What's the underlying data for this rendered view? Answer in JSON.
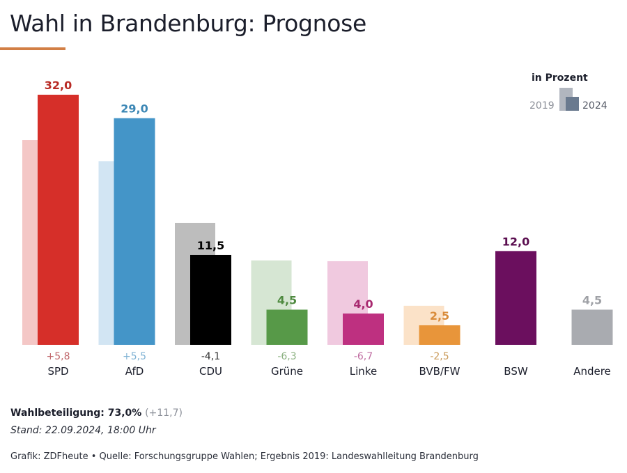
{
  "header": {
    "title": "Wahl in Brandenburg: Prognose",
    "accent_color": "#d27f45"
  },
  "legend": {
    "title": "in Prozent",
    "year_old": "2019",
    "year_new": "2024"
  },
  "chart_data": {
    "type": "bar",
    "title": "Wahl in Brandenburg: Prognose",
    "unit": "in Prozent",
    "xlabel": "",
    "ylabel": "",
    "ylim": [
      0,
      32
    ],
    "grid": false,
    "legend_position": "top-right",
    "categories": [
      "SPD",
      "AfD",
      "CDU",
      "Grüne",
      "Linke",
      "BVB/FW",
      "BSW",
      "Andere"
    ],
    "series": [
      {
        "name": "2019",
        "values": [
          26.2,
          23.5,
          15.6,
          10.8,
          10.7,
          5.0,
          null,
          null
        ]
      },
      {
        "name": "2024",
        "values": [
          32.0,
          29.0,
          11.5,
          4.5,
          4.0,
          2.5,
          12.0,
          4.5
        ]
      }
    ],
    "value_labels": [
      "32,0",
      "29,0",
      "11,5",
      "4,5",
      "4,0",
      "2,5",
      "12,0",
      "4,5"
    ],
    "change_labels": [
      "+5,8",
      "+5,5",
      "-4,1",
      "-6,3",
      "-6,7",
      "-2,5",
      "",
      ""
    ],
    "colors_2024": [
      "#d62f29",
      "#4495c8",
      "#000000",
      "#579948",
      "#be3080",
      "#e8953a",
      "#6b0f5e",
      "#a9abb0"
    ],
    "colors_2019": [
      "#f4c7c6",
      "#d2e5f3",
      "#bdbdbd",
      "#d6e6d3",
      "#f0c9df",
      "#fbe2c8",
      "",
      ""
    ],
    "value_label_colors": [
      "#b82a24",
      "#3c87b5",
      "#000000",
      "#4f8a40",
      "#a8286f",
      "#d98b3a",
      "#5a0d4f",
      "#9fa1a6"
    ],
    "change_label_colors": [
      "#c0666a",
      "#7fb2d4",
      "#333333",
      "#8ab07f",
      "#c06ea2",
      "#c99856",
      "#888888",
      "#888888"
    ]
  },
  "footer": {
    "turnout_label": "Wahlbeteiligung: 73,0%",
    "turnout_change": "(+11,7)",
    "stand": "Stand: 22.09.2024, 18:00 Uhr",
    "source": "Grafik: ZDFheute • Quelle: Forschungsgruppe Wahlen; Ergebnis 2019: Landeswahlleitung Brandenburg"
  }
}
